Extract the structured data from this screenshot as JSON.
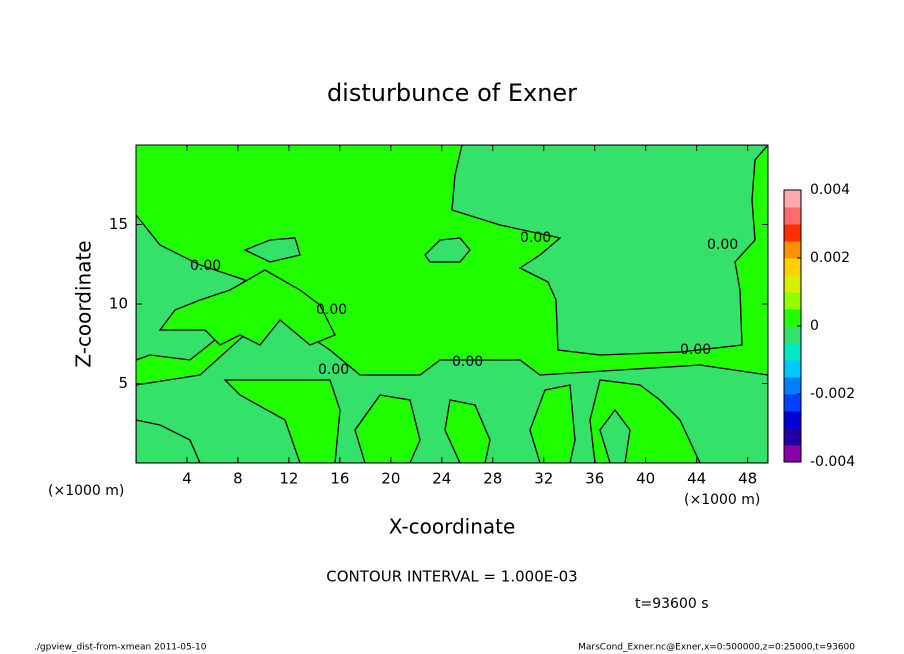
{
  "chart_data": {
    "type": "contour",
    "title": "disturbunce of Exner",
    "x_label": "X-coordinate",
    "y_label": "Z-coordinate",
    "x_unit": "(×1000 m)",
    "y_unit": "(×1000 m)",
    "xlim": [
      0,
      49.6
    ],
    "xticks": [
      4,
      8,
      12,
      16,
      20,
      24,
      28,
      32,
      36,
      40,
      44,
      48
    ],
    "ylim": [
      0,
      20
    ],
    "yticks": [
      5,
      10,
      15
    ],
    "clim": [
      -0.004,
      0.004
    ],
    "cticks": [
      -0.004,
      -0.002,
      0,
      0.002,
      0.004
    ],
    "colors": [
      "#8a00aa",
      "#2000a0",
      "#0000d8",
      "#0040ff",
      "#0080ff",
      "#00c8ff",
      "#00e8c0",
      "#34e26a",
      "#20ff00",
      "#90ff00",
      "#d8f000",
      "#ffd000",
      "#ff9000",
      "#ff3000",
      "#ff6a6a",
      "#ffaaaa"
    ],
    "contour_labels": [
      "0.00",
      "0.00",
      "0.00",
      "0.00",
      "0.00",
      "0.00",
      "0.00"
    ],
    "note": "CONTOUR INTERVAL = 1.000E-03",
    "time": "t=93600 s",
    "footer_left": "./gpview_dist-from-xmean  2011-05-10",
    "footer_right": "MarsCond_Exner.nc@Exner,x=0:500000,z=0:25000,t=93600"
  }
}
